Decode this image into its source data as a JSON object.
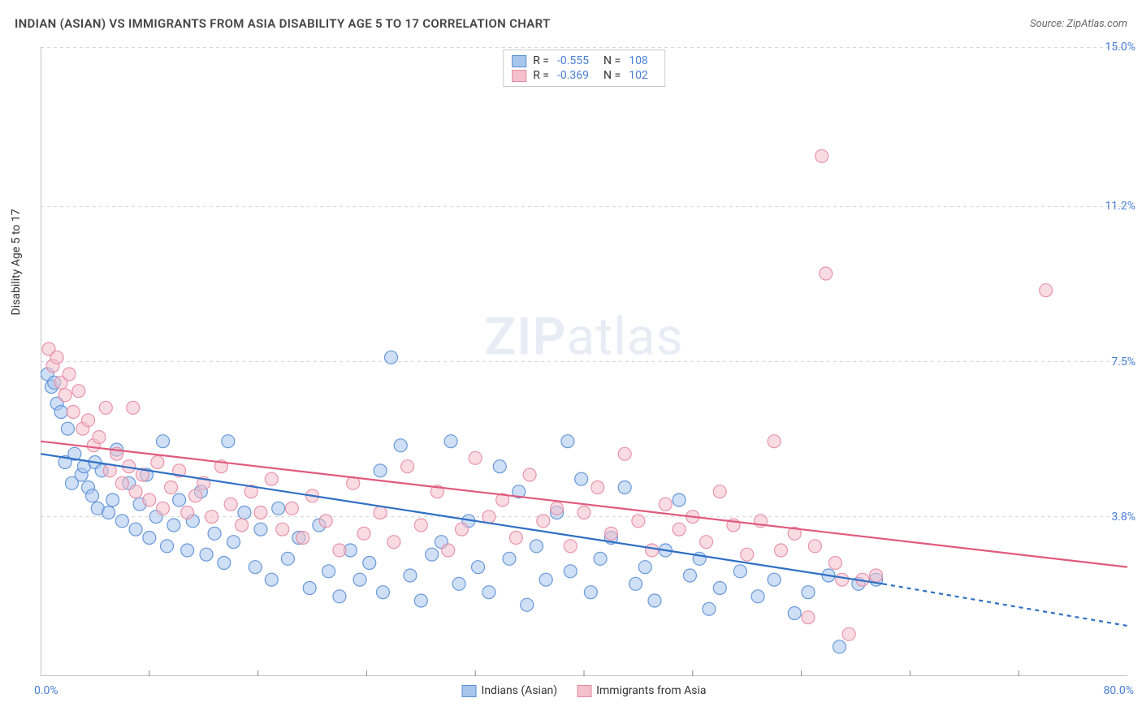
{
  "header": {
    "title": "INDIAN (ASIAN) VS IMMIGRANTS FROM ASIA DISABILITY AGE 5 TO 17 CORRELATION CHART",
    "source": "Source: ZipAtlas.com"
  },
  "watermark": {
    "zip": "ZIP",
    "atlas": "atlas"
  },
  "chart": {
    "type": "scatter",
    "background_color": "#ffffff",
    "grid_color": "#d8d8d8",
    "grid_dash": "4,4",
    "axis_color": "#888888",
    "yaxis_label": "Disability Age 5 to 17",
    "label_fontsize": 14,
    "label_color": "#333333",
    "tick_color": "#4a7fd6",
    "tick_fontsize": 14,
    "xlim": [
      0,
      80
    ],
    "ylim": [
      0,
      15
    ],
    "x_origin_label": "0.0%",
    "x_max_label": "80.0%",
    "y_ticks": [
      {
        "v": 3.8,
        "label": "3.8%"
      },
      {
        "v": 7.5,
        "label": "7.5%"
      },
      {
        "v": 11.2,
        "label": "11.2%"
      },
      {
        "v": 15.0,
        "label": "15.0%"
      }
    ],
    "x_minor_ticks": [
      8,
      16,
      24,
      32,
      40,
      48,
      56,
      64,
      72
    ],
    "marker_radius": 8,
    "marker_opacity": 0.55,
    "marker_stroke_opacity": 0.9,
    "line_width": 2.2,
    "series": [
      {
        "id": "indians",
        "label": "Indians (Asian)",
        "fill_color": "#a7c5ec",
        "stroke_color": "#5a8fd6",
        "line_color": "#2f6fc4",
        "r_value": "-0.555",
        "n_value": "108",
        "trend": {
          "x1": 0,
          "y1": 5.3,
          "x2": 62,
          "y2": 2.2,
          "dash_x2": 80,
          "dash_y2": 1.2
        },
        "points": [
          [
            0.5,
            7.2
          ],
          [
            0.8,
            6.9
          ],
          [
            1.0,
            7.0
          ],
          [
            1.2,
            6.5
          ],
          [
            1.5,
            6.3
          ],
          [
            1.8,
            5.1
          ],
          [
            2.0,
            5.9
          ],
          [
            2.3,
            4.6
          ],
          [
            2.5,
            5.3
          ],
          [
            3.0,
            4.8
          ],
          [
            3.2,
            5.0
          ],
          [
            3.5,
            4.5
          ],
          [
            3.8,
            4.3
          ],
          [
            4.0,
            5.1
          ],
          [
            4.2,
            4.0
          ],
          [
            4.5,
            4.9
          ],
          [
            5.0,
            3.9
          ],
          [
            5.3,
            4.2
          ],
          [
            5.6,
            5.4
          ],
          [
            6.0,
            3.7
          ],
          [
            6.5,
            4.6
          ],
          [
            7.0,
            3.5
          ],
          [
            7.3,
            4.1
          ],
          [
            7.8,
            4.8
          ],
          [
            8.0,
            3.3
          ],
          [
            8.5,
            3.8
          ],
          [
            9.0,
            5.6
          ],
          [
            9.3,
            3.1
          ],
          [
            9.8,
            3.6
          ],
          [
            10.2,
            4.2
          ],
          [
            10.8,
            3.0
          ],
          [
            11.2,
            3.7
          ],
          [
            11.8,
            4.4
          ],
          [
            12.2,
            2.9
          ],
          [
            12.8,
            3.4
          ],
          [
            13.5,
            2.7
          ],
          [
            13.8,
            5.6
          ],
          [
            14.2,
            3.2
          ],
          [
            15.0,
            3.9
          ],
          [
            15.8,
            2.6
          ],
          [
            16.2,
            3.5
          ],
          [
            17.0,
            2.3
          ],
          [
            17.5,
            4.0
          ],
          [
            18.2,
            2.8
          ],
          [
            19.0,
            3.3
          ],
          [
            19.8,
            2.1
          ],
          [
            20.5,
            3.6
          ],
          [
            21.2,
            2.5
          ],
          [
            22.0,
            1.9
          ],
          [
            22.8,
            3.0
          ],
          [
            23.5,
            2.3
          ],
          [
            24.2,
            2.7
          ],
          [
            25.0,
            4.9
          ],
          [
            25.2,
            2.0
          ],
          [
            25.8,
            7.6
          ],
          [
            26.5,
            5.5
          ],
          [
            27.2,
            2.4
          ],
          [
            28.0,
            1.8
          ],
          [
            28.8,
            2.9
          ],
          [
            29.5,
            3.2
          ],
          [
            30.2,
            5.6
          ],
          [
            30.8,
            2.2
          ],
          [
            31.5,
            3.7
          ],
          [
            32.2,
            2.6
          ],
          [
            33.0,
            2.0
          ],
          [
            33.8,
            5.0
          ],
          [
            34.5,
            2.8
          ],
          [
            35.2,
            4.4
          ],
          [
            35.8,
            1.7
          ],
          [
            36.5,
            3.1
          ],
          [
            37.2,
            2.3
          ],
          [
            38.0,
            3.9
          ],
          [
            38.8,
            5.6
          ],
          [
            39.0,
            2.5
          ],
          [
            39.8,
            4.7
          ],
          [
            40.5,
            2.0
          ],
          [
            41.2,
            2.8
          ],
          [
            42.0,
            3.3
          ],
          [
            43.0,
            4.5
          ],
          [
            43.8,
            2.2
          ],
          [
            44.5,
            2.6
          ],
          [
            45.2,
            1.8
          ],
          [
            46.0,
            3.0
          ],
          [
            47.0,
            4.2
          ],
          [
            47.8,
            2.4
          ],
          [
            48.5,
            2.8
          ],
          [
            49.2,
            1.6
          ],
          [
            50.0,
            2.1
          ],
          [
            51.5,
            2.5
          ],
          [
            52.8,
            1.9
          ],
          [
            54.0,
            2.3
          ],
          [
            55.5,
            1.5
          ],
          [
            56.5,
            2.0
          ],
          [
            58.0,
            2.4
          ],
          [
            58.8,
            0.7
          ],
          [
            60.2,
            2.2
          ],
          [
            61.5,
            2.3
          ]
        ]
      },
      {
        "id": "immigrants",
        "label": "Immigrants from Asia",
        "fill_color": "#f4c0cc",
        "stroke_color": "#e68aa3",
        "line_color": "#e05a7e",
        "r_value": "-0.369",
        "n_value": "102",
        "trend": {
          "x1": 0,
          "y1": 5.6,
          "x2": 80,
          "y2": 2.6
        },
        "points": [
          [
            0.6,
            7.8
          ],
          [
            0.9,
            7.4
          ],
          [
            1.2,
            7.6
          ],
          [
            1.5,
            7.0
          ],
          [
            1.8,
            6.7
          ],
          [
            2.1,
            7.2
          ],
          [
            2.4,
            6.3
          ],
          [
            2.8,
            6.8
          ],
          [
            3.1,
            5.9
          ],
          [
            3.5,
            6.1
          ],
          [
            3.9,
            5.5
          ],
          [
            4.3,
            5.7
          ],
          [
            4.8,
            6.4
          ],
          [
            5.1,
            4.9
          ],
          [
            5.6,
            5.3
          ],
          [
            6.0,
            4.6
          ],
          [
            6.5,
            5.0
          ],
          [
            7.0,
            4.4
          ],
          [
            6.8,
            6.4
          ],
          [
            7.5,
            4.8
          ],
          [
            8.0,
            4.2
          ],
          [
            8.6,
            5.1
          ],
          [
            9.0,
            4.0
          ],
          [
            9.6,
            4.5
          ],
          [
            10.2,
            4.9
          ],
          [
            10.8,
            3.9
          ],
          [
            11.4,
            4.3
          ],
          [
            12.0,
            4.6
          ],
          [
            12.6,
            3.8
          ],
          [
            13.3,
            5.0
          ],
          [
            14.0,
            4.1
          ],
          [
            14.8,
            3.6
          ],
          [
            15.5,
            4.4
          ],
          [
            16.2,
            3.9
          ],
          [
            17.0,
            4.7
          ],
          [
            17.8,
            3.5
          ],
          [
            18.5,
            4.0
          ],
          [
            19.3,
            3.3
          ],
          [
            20.0,
            4.3
          ],
          [
            21.0,
            3.7
          ],
          [
            22.0,
            3.0
          ],
          [
            23.0,
            4.6
          ],
          [
            23.8,
            3.4
          ],
          [
            25.0,
            3.9
          ],
          [
            26.0,
            3.2
          ],
          [
            27.0,
            5.0
          ],
          [
            28.0,
            3.6
          ],
          [
            29.2,
            4.4
          ],
          [
            30.0,
            3.0
          ],
          [
            31.0,
            3.5
          ],
          [
            32.0,
            5.2
          ],
          [
            33.0,
            3.8
          ],
          [
            34.0,
            4.2
          ],
          [
            35.0,
            3.3
          ],
          [
            36.0,
            4.8
          ],
          [
            37.0,
            3.7
          ],
          [
            38.0,
            4.0
          ],
          [
            39.0,
            3.1
          ],
          [
            40.0,
            3.9
          ],
          [
            41.0,
            4.5
          ],
          [
            42.0,
            3.4
          ],
          [
            43.0,
            5.3
          ],
          [
            44.0,
            3.7
          ],
          [
            45.0,
            3.0
          ],
          [
            46.0,
            4.1
          ],
          [
            47.0,
            3.5
          ],
          [
            48.0,
            3.8
          ],
          [
            49.0,
            3.2
          ],
          [
            50.0,
            4.4
          ],
          [
            51.0,
            3.6
          ],
          [
            52.0,
            2.9
          ],
          [
            53.0,
            3.7
          ],
          [
            54.0,
            5.6
          ],
          [
            54.5,
            3.0
          ],
          [
            55.5,
            3.4
          ],
          [
            56.5,
            1.4
          ],
          [
            57.0,
            3.1
          ],
          [
            57.5,
            12.4
          ],
          [
            57.8,
            9.6
          ],
          [
            58.5,
            2.7
          ],
          [
            59.0,
            2.3
          ],
          [
            59.5,
            1.0
          ],
          [
            60.5,
            2.3
          ],
          [
            61.5,
            2.4
          ],
          [
            74.0,
            9.2
          ]
        ]
      }
    ],
    "corr_legend": {
      "border_color": "#cccccc",
      "r_label": "R =",
      "n_label": "N ="
    },
    "bottom_legend_fontsize": 14
  }
}
